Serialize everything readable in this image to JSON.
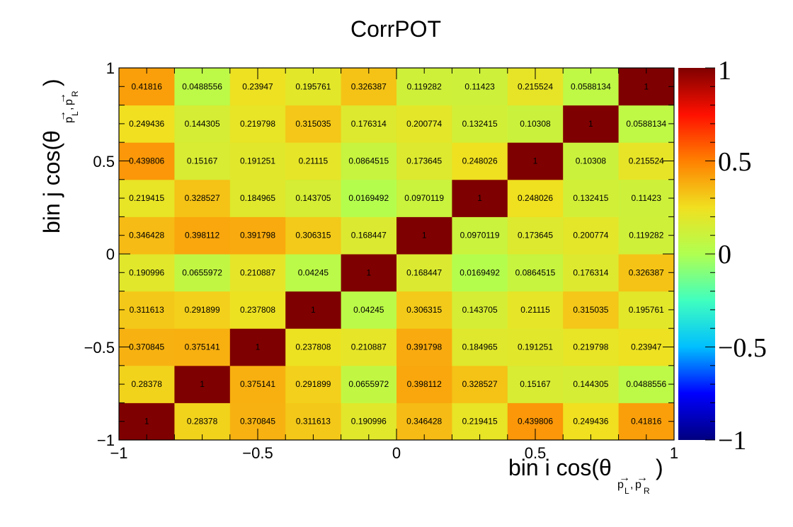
{
  "chart_data": {
    "type": "heatmap",
    "title": "CorrPOT",
    "xlabel": "bin i cos(θ p L , p R )",
    "ylabel": "bin j cos(θ p L , p R )",
    "x_tick_labels": [
      "−1",
      "−0.5",
      "0",
      "0.5",
      "1"
    ],
    "y_tick_labels": [
      "−1",
      "−0.5",
      "0",
      "0.5",
      "1"
    ],
    "xlim": [
      -1,
      1
    ],
    "ylim": [
      -1,
      1
    ],
    "zlim": [
      -1,
      1
    ],
    "colorbar_tick_labels": [
      "−1",
      "−0.5",
      "0",
      "0.5",
      "1"
    ],
    "colorscale": [
      "#00007f",
      "#0000ff",
      "#00bfff",
      "#40ffbf",
      "#b0ff50",
      "#f0e020",
      "#ff8000",
      "#ff1000",
      "#7f0000"
    ],
    "values": [
      [
        1,
        0.28378,
        0.370845,
        0.311613,
        0.190996,
        0.346428,
        0.219415,
        0.439806,
        0.249436,
        0.41816
      ],
      [
        0.28378,
        1,
        0.375141,
        0.291899,
        0.0655972,
        0.398112,
        0.328527,
        0.15167,
        0.144305,
        0.0488556
      ],
      [
        0.370845,
        0.375141,
        1,
        0.237808,
        0.210887,
        0.391798,
        0.184965,
        0.191251,
        0.219798,
        0.23947
      ],
      [
        0.311613,
        0.291899,
        0.237808,
        1,
        0.04245,
        0.306315,
        0.143705,
        0.21115,
        0.315035,
        0.195761
      ],
      [
        0.190996,
        0.0655972,
        0.210887,
        0.04245,
        1,
        0.168447,
        0.0169492,
        0.0864515,
        0.176314,
        0.326387
      ],
      [
        0.346428,
        0.398112,
        0.391798,
        0.306315,
        0.168447,
        1,
        0.0970119,
        0.173645,
        0.200774,
        0.119282
      ],
      [
        0.219415,
        0.328527,
        0.184965,
        0.143705,
        0.0169492,
        0.0970119,
        1,
        0.248026,
        0.132415,
        0.11423
      ],
      [
        0.439806,
        0.15167,
        0.191251,
        0.21115,
        0.0864515,
        0.173645,
        0.248026,
        1,
        0.10308,
        0.215524
      ],
      [
        0.249436,
        0.144305,
        0.219798,
        0.315035,
        0.176314,
        0.200774,
        0.132415,
        0.10308,
        1,
        0.0588134
      ],
      [
        0.41816,
        0.0488556,
        0.23947,
        0.195761,
        0.326387,
        0.119282,
        0.11423,
        0.215524,
        0.0588134,
        1
      ]
    ],
    "cell_labels": [
      [
        "1",
        "0.28378",
        "0.370845",
        "0.311613",
        "0.190996",
        "0.346428",
        "0.219415",
        "0.439806",
        "0.249436",
        "0.41816"
      ],
      [
        "0.28378",
        "1",
        "0.375141",
        "0.291899",
        "0.0655972",
        "0.398112",
        "0.328527",
        "0.15167",
        "0.144305",
        "0.0488556"
      ],
      [
        "0.370845",
        "0.375141",
        "1",
        "0.237808",
        "0.210887",
        "0.391798",
        "0.184965",
        "0.191251",
        "0.219798",
        "0.23947"
      ],
      [
        "0.311613",
        "0.291899",
        "0.237808",
        "1",
        "0.04245",
        "0.306315",
        "0.143705",
        "0.21115",
        "0.315035",
        "0.195761"
      ],
      [
        "0.190996",
        "0.0655972",
        "0.210887",
        "0.04245",
        "1",
        "0.168447",
        "0.0169492",
        "0.0864515",
        "0.176314",
        "0.326387"
      ],
      [
        "0.346428",
        "0.398112",
        "0.391798",
        "0.306315",
        "0.168447",
        "1",
        "0.0970119",
        "0.173645",
        "0.200774",
        "0.119282"
      ],
      [
        "0.219415",
        "0.328527",
        "0.184965",
        "0.143705",
        "0.0169492",
        "0.0970119",
        "1",
        "0.248026",
        "0.132415",
        "0.11423"
      ],
      [
        "0.439806",
        "0.15167",
        "0.191251",
        "0.21115",
        "0.0864515",
        "0.173645",
        "0.248026",
        "1",
        "0.10308",
        "0.215524"
      ],
      [
        "0.249436",
        "0.144305",
        "0.219798",
        "0.315035",
        "0.176314",
        "0.200774",
        "0.132415",
        "0.10308",
        "1",
        "0.0588134"
      ],
      [
        "0.41816",
        "0.0488556",
        "0.23947",
        "0.195761",
        "0.326387",
        "0.119282",
        "0.11423",
        "0.215524",
        "0.0588134",
        "1"
      ]
    ],
    "grid": false,
    "legend": "colorbar-right"
  }
}
